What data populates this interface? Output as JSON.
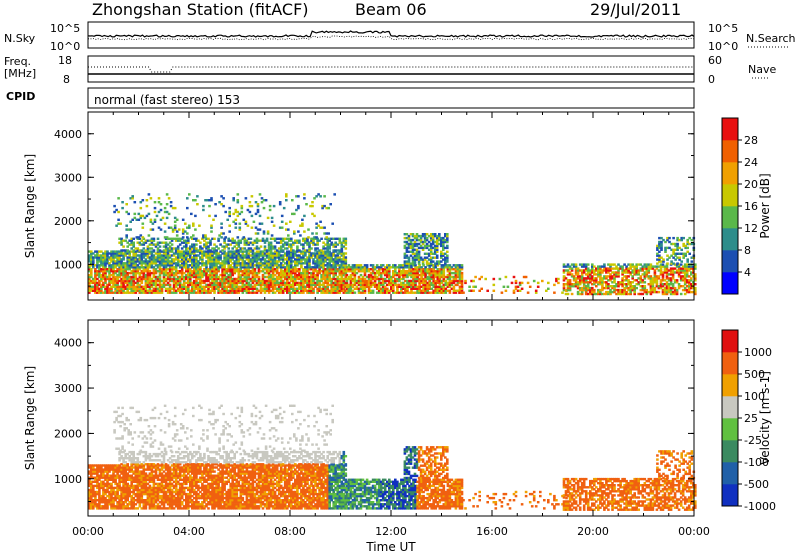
{
  "header": {
    "title": "Zhongshan Station (fitACF)",
    "beam": "Beam 06",
    "date": "29/Jul/2011"
  },
  "strip_noise": {
    "left_label": "N.Sky",
    "right_label": "N.Search",
    "left_ticks": [
      "10^5",
      "10^0"
    ],
    "right_ticks": [
      "10^5",
      "10^0"
    ]
  },
  "strip_freq": {
    "left_label_line1": "Freq.",
    "left_label_line2": "[MHz]",
    "right_label": "Nave",
    "left_ticks": [
      "18",
      "8"
    ],
    "right_ticks": [
      "60",
      "0"
    ]
  },
  "cpid": {
    "label": "CPID",
    "text": "normal (fast stereo) 153"
  },
  "chart_data": [
    {
      "type": "heatmap",
      "ylabel": "Slant Range [km]",
      "xlabel": "Time UT",
      "xlim": [
        "00:00",
        "00:00"
      ],
      "ylim": [
        180,
        4500
      ],
      "yticks": [
        1000,
        2000,
        3000,
        4000
      ],
      "colorbar": {
        "label": "Power [dB]",
        "ticks": [
          "28",
          "24",
          "20",
          "16",
          "12",
          "8",
          "4"
        ],
        "colors": [
          "#0000ff",
          "#1c4fb2",
          "#2d8d8b",
          "#5ab84a",
          "#c8c800",
          "#f0a000",
          "#f06000",
          "#e81010"
        ]
      }
    },
    {
      "type": "heatmap",
      "ylabel": "Slant Range [km]",
      "xlabel": "Time UT",
      "xlim": [
        "00:00",
        "00:00"
      ],
      "ylim": [
        180,
        4500
      ],
      "yticks": [
        1000,
        2000,
        3000,
        4000
      ],
      "xticks": [
        "00:00",
        "04:00",
        "08:00",
        "12:00",
        "16:00",
        "20:00",
        "00:00"
      ],
      "colorbar": {
        "label": "Velocity [m s-1]",
        "ticks": [
          "1000",
          "500",
          "100",
          "25",
          "-25",
          "-100",
          "-500",
          "-1000"
        ],
        "colors": [
          "#1030c0",
          "#2060a8",
          "#3a8a60",
          "#60c040",
          "#c8c8c0",
          "#f0a000",
          "#f06010",
          "#e01010"
        ]
      }
    }
  ]
}
